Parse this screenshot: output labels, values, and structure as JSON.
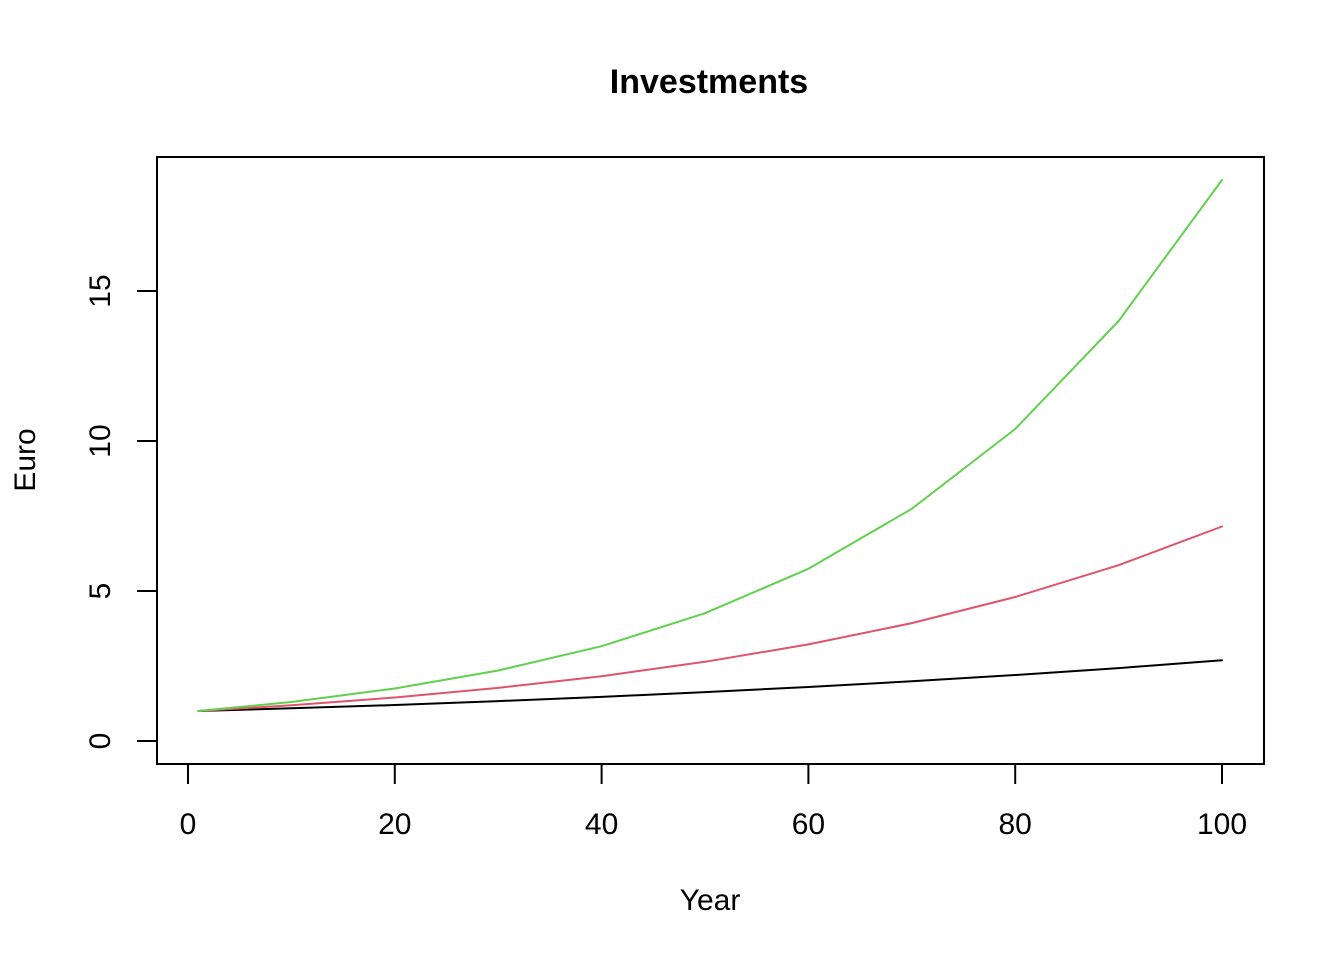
{
  "chart_data": {
    "type": "line",
    "title": "Investments",
    "xlabel": "Year",
    "ylabel": "Euro",
    "xlim": [
      1,
      100
    ],
    "ylim": [
      0,
      18.7
    ],
    "x_ticks": [
      0,
      20,
      40,
      60,
      80,
      100
    ],
    "x_tick_labels": [
      "0",
      "20",
      "40",
      "60",
      "80",
      "100"
    ],
    "y_ticks": [
      0,
      5,
      10,
      15
    ],
    "y_tick_labels": [
      "0",
      "5",
      "10",
      "15"
    ],
    "grid": false,
    "legend": null,
    "x": [
      1,
      10,
      20,
      30,
      40,
      50,
      60,
      70,
      80,
      90,
      100
    ],
    "series": [
      {
        "color": "#000000",
        "values": [
          1.0,
          1.09,
          1.2,
          1.33,
          1.47,
          1.63,
          1.8,
          1.99,
          2.2,
          2.43,
          2.69
        ]
      },
      {
        "color": "#DF536B",
        "values": [
          1.0,
          1.19,
          1.45,
          1.77,
          2.16,
          2.64,
          3.22,
          3.93,
          4.8,
          5.86,
          7.15
        ]
      },
      {
        "color": "#61D04F",
        "values": [
          1.0,
          1.3,
          1.75,
          2.35,
          3.16,
          4.26,
          5.74,
          7.74,
          10.4,
          14.0,
          18.7
        ]
      }
    ]
  }
}
